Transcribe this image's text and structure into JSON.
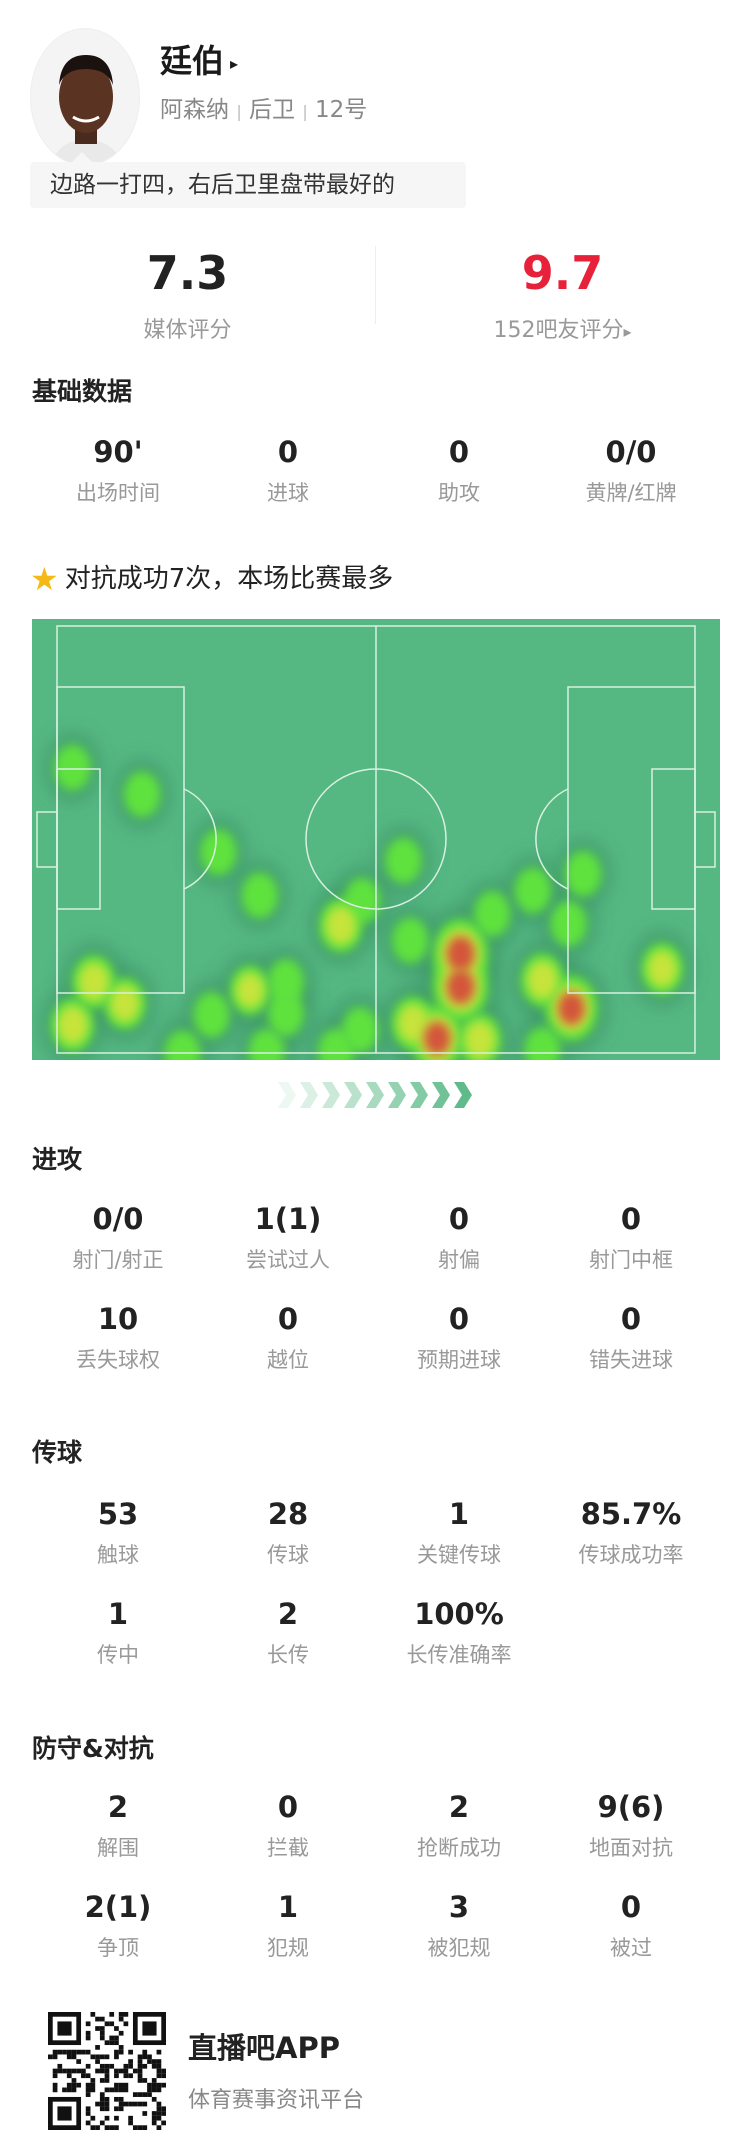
{
  "player": {
    "name": "廷伯",
    "team": "阿森纳",
    "position": "后卫",
    "number": "12号",
    "sep": "|",
    "arrow": "▸"
  },
  "quote": "边路一打四，右后卫里盘带最好的",
  "ratings": {
    "media": {
      "value": "7.3",
      "label": "媒体评分"
    },
    "fans": {
      "value": "9.7",
      "label": "152吧友评分",
      "arrow": "▸",
      "color": "#e8213a"
    }
  },
  "basic": {
    "title": "基础数据",
    "stats": [
      {
        "value": "90'",
        "label": "出场时间"
      },
      {
        "value": "0",
        "label": "进球"
      },
      {
        "value": "0",
        "label": "助攻"
      },
      {
        "value": "0/0",
        "label": "黄牌/红牌"
      }
    ]
  },
  "highlight": {
    "icon": "star-icon",
    "text": "对抗成功7次，本场比赛最多"
  },
  "heatmap": {
    "pitch_color": "#55b782",
    "line_color": "#d8f0e0",
    "attack_direction": "right",
    "points_pitch_units": [
      [
        5.9,
        33.7,
        0.4
      ],
      [
        16,
        39.8,
        0.4
      ],
      [
        27.1,
        52.9,
        0.4
      ],
      [
        33.1,
        62.7,
        0.4
      ],
      [
        44.9,
        69.5,
        0.6
      ],
      [
        48,
        63.9,
        0.4
      ],
      [
        54,
        54.8,
        0.4
      ],
      [
        55,
        72.9,
        0.4
      ],
      [
        62.3,
        75.9,
        1
      ],
      [
        62.3,
        83.4,
        1
      ],
      [
        66.9,
        66.9,
        0.4
      ],
      [
        72.8,
        61.6,
        0.4
      ],
      [
        80.1,
        57.8,
        0.4
      ],
      [
        78,
        69.1,
        0.4
      ],
      [
        78.4,
        88.3,
        0.9
      ],
      [
        74.2,
        81.9,
        0.6
      ],
      [
        91.6,
        79.3,
        0.55
      ],
      [
        9,
        82.3,
        0.6
      ],
      [
        5.9,
        92.1,
        0.6
      ],
      [
        13.5,
        87.2,
        0.55
      ],
      [
        31.7,
        84.2,
        0.5
      ],
      [
        36.9,
        82.3,
        0.4
      ],
      [
        36.9,
        89.5,
        0.4
      ],
      [
        26.1,
        89.8,
        0.4
      ],
      [
        21.9,
        98.5,
        0.4
      ],
      [
        34.1,
        98.1,
        0.4
      ],
      [
        44.2,
        98.1,
        0.4
      ],
      [
        47.7,
        93.2,
        0.4
      ],
      [
        58.9,
        95.1,
        0.9
      ],
      [
        55.4,
        91.7,
        0.6
      ],
      [
        65.1,
        95.5,
        0.6
      ],
      [
        74.2,
        97.7,
        0.4
      ]
    ]
  },
  "attack": {
    "title": "进攻",
    "stats": [
      {
        "value": "0/0",
        "label": "射门/射正"
      },
      {
        "value": "1(1)",
        "label": "尝试过人"
      },
      {
        "value": "0",
        "label": "射偏"
      },
      {
        "value": "0",
        "label": "射门中框"
      },
      {
        "value": "10",
        "label": "丢失球权"
      },
      {
        "value": "0",
        "label": "越位"
      },
      {
        "value": "0",
        "label": "预期进球"
      },
      {
        "value": "0",
        "label": "错失进球"
      }
    ]
  },
  "passing": {
    "title": "传球",
    "stats": [
      {
        "value": "53",
        "label": "触球"
      },
      {
        "value": "28",
        "label": "传球"
      },
      {
        "value": "1",
        "label": "关键传球"
      },
      {
        "value": "85.7%",
        "label": "传球成功率"
      },
      {
        "value": "1",
        "label": "传中"
      },
      {
        "value": "2",
        "label": "长传"
      },
      {
        "value": "100%",
        "label": "长传准确率"
      }
    ]
  },
  "defense": {
    "title": "防守&对抗",
    "stats": [
      {
        "value": "2",
        "label": "解围"
      },
      {
        "value": "0",
        "label": "拦截"
      },
      {
        "value": "2",
        "label": "抢断成功"
      },
      {
        "value": "9(6)",
        "label": "地面对抗"
      },
      {
        "value": "2(1)",
        "label": "争顶"
      },
      {
        "value": "1",
        "label": "犯规"
      },
      {
        "value": "3",
        "label": "被犯规"
      },
      {
        "value": "0",
        "label": "被过"
      }
    ]
  },
  "footer": {
    "brand": "直播吧APP",
    "tagline": "体育赛事资讯平台"
  }
}
